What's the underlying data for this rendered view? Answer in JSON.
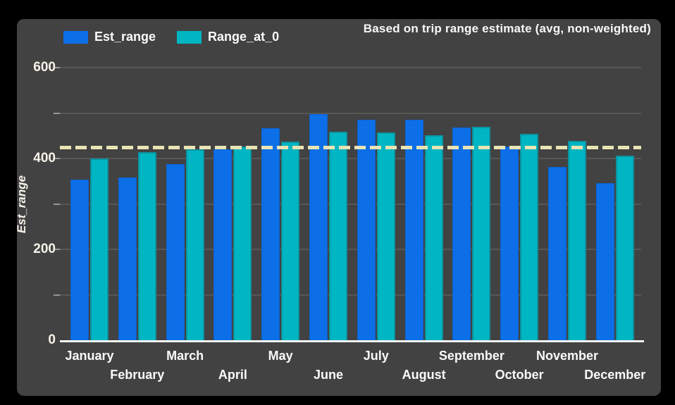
{
  "title": "Based on trip range estimate (avg, non-weighted)",
  "y_axis": {
    "label": "Est_range",
    "tick_labels": [
      "0",
      "200",
      "400",
      "600"
    ]
  },
  "legend": [
    {
      "label": "Est_range",
      "color": "#0c6fe8"
    },
    {
      "label": "Range_at_0",
      "color": "#00b6c3"
    }
  ],
  "colors": {
    "background": "#000000",
    "panel": "#424242",
    "gridline": "#575757",
    "axis_line": "#f2f2f2",
    "tick_text": "#f6f3ea",
    "label_text": "#fafafa",
    "dashed_line": "#e9e4b4",
    "est_range_fill": "#0c6fe8",
    "est_range_border": "#0a62cf",
    "range_at_0_fill": "#00b6c3",
    "range_at_0_border": "#0b93a1"
  },
  "chart_data": {
    "type": "bar",
    "title": "Based on trip range estimate (avg, non-weighted)",
    "xlabel": "",
    "ylabel": "Est_range",
    "categories": [
      "January",
      "February",
      "March",
      "April",
      "May",
      "June",
      "July",
      "August",
      "September",
      "October",
      "November",
      "December"
    ],
    "series": [
      {
        "name": "Est_range",
        "color": "#0c6fe8",
        "values": [
          353,
          358,
          388,
          420,
          467,
          497,
          486,
          486,
          468,
          426,
          381,
          345
        ]
      },
      {
        "name": "Range_at_0",
        "color": "#00b6c3",
        "values": [
          400,
          414,
          420,
          426,
          437,
          459,
          458,
          451,
          469,
          454,
          439,
          406
        ]
      }
    ],
    "ylim": [
      0,
      600
    ],
    "yticks": [
      0,
      200,
      400,
      600
    ],
    "grid": true,
    "grid_interval": 100,
    "reference_line": {
      "value": 425,
      "style": "dashed",
      "color": "#e9e4b4"
    },
    "legend_position": "top-left"
  }
}
